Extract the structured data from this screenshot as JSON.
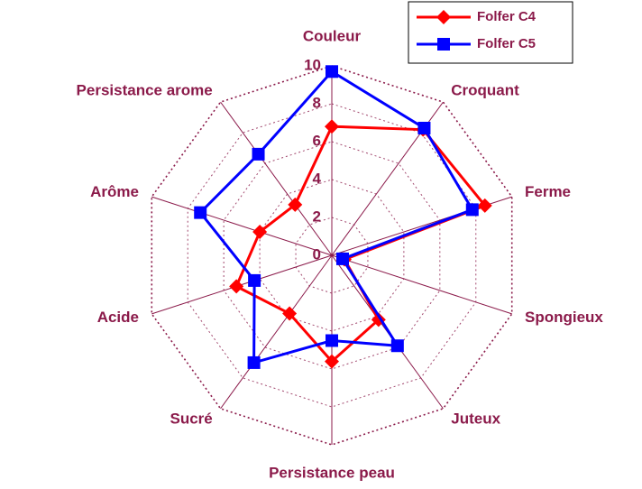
{
  "chart_data": {
    "type": "radar",
    "categories": [
      "Couleur",
      "Croquant",
      "Ferme",
      "Spongieux",
      "Juteux",
      "Persistance peau",
      "Sucré",
      "Acide",
      "Arôme",
      "Persistance arome"
    ],
    "rlim": [
      0,
      10
    ],
    "rticks": [
      0,
      2,
      4,
      6,
      8,
      10
    ],
    "grid": true,
    "legend": "upper right",
    "series": [
      {
        "name": "Folfer C4",
        "color": "#ff0000",
        "marker": "diamond",
        "values": [
          6.8,
          8.2,
          8.5,
          0.7,
          4.2,
          5.6,
          3.8,
          5.3,
          4.0,
          3.3
        ]
      },
      {
        "name": "Folfer C5",
        "color": "#0000ff",
        "marker": "square",
        "values": [
          9.7,
          8.3,
          7.8,
          0.6,
          5.9,
          4.5,
          7.0,
          4.3,
          7.3,
          6.6
        ]
      }
    ]
  }
}
